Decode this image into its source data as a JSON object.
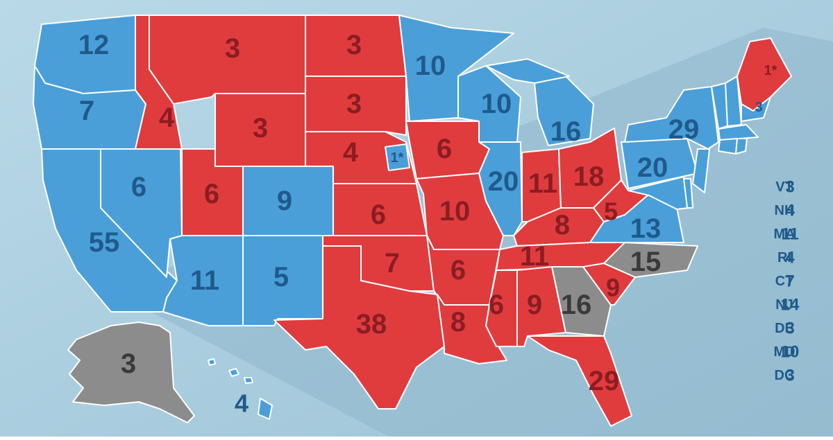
{
  "states": [
    {
      "votes": 12,
      "color": "#4a9fd9",
      "text_color": "#1f5a8a"
    },
    {
      "votes": 7,
      "color": "#4a9fd9",
      "text_color": "#1f5a8a"
    },
    {
      "votes": 55,
      "color": "#4a9fd9",
      "text_color": "#1f5a8a"
    },
    {
      "votes": 6,
      "color": "#4a9fd9",
      "text_color": "#1f5a8a"
    },
    {
      "votes": 4,
      "color": "#e03c3e",
      "text_color": "#8b1c22"
    },
    {
      "votes": 3,
      "color": "#e03c3e",
      "text_color": "#8b1c22"
    },
    {
      "votes": 3,
      "color": "#e03c3e",
      "text_color": "#8b1c22"
    },
    {
      "votes": 6,
      "color": "#e03c3e",
      "text_color": "#8b1c22"
    },
    {
      "votes": 9,
      "color": "#4a9fd9",
      "text_color": "#1f5a8a"
    },
    {
      "votes": 11,
      "color": "#4a9fd9",
      "text_color": "#1f5a8a"
    },
    {
      "votes": 5,
      "color": "#4a9fd9",
      "text_color": "#1f5a8a"
    },
    {
      "votes": 3,
      "color": "#e03c3e",
      "text_color": "#8b1c22"
    },
    {
      "votes": 3,
      "color": "#e03c3e",
      "text_color": "#8b1c22"
    },
    {
      "votes": 4,
      "color": "#e03c3e",
      "text_color": "#8b1c22"
    },
    {
      "votes": "1*",
      "color": "#4a9fd9",
      "text_color": "#1f5a8a"
    },
    {
      "votes": 6,
      "color": "#e03c3e",
      "text_color": "#8b1c22"
    },
    {
      "votes": 7,
      "color": "#e03c3e",
      "text_color": "#8b1c22"
    },
    {
      "votes": 38,
      "color": "#e03c3e",
      "text_color": "#8b1c22"
    },
    {
      "votes": 10,
      "color": "#4a9fd9",
      "text_color": "#1f5a8a"
    },
    {
      "votes": 6,
      "color": "#e03c3e",
      "text_color": "#8b1c22"
    },
    {
      "votes": 10,
      "color": "#e03c3e",
      "text_color": "#8b1c22"
    },
    {
      "votes": 6,
      "color": "#e03c3e",
      "text_color": "#8b1c22"
    },
    {
      "votes": 8,
      "color": "#e03c3e",
      "text_color": "#8b1c22"
    },
    {
      "votes": 10,
      "color": "#4a9fd9",
      "text_color": "#1f5a8a"
    },
    {
      "votes": 20,
      "color": "#4a9fd9",
      "text_color": "#1f5a8a"
    },
    {
      "votes": 16,
      "color": "#4a9fd9",
      "text_color": "#1f5a8a"
    },
    {
      "votes": 11,
      "color": "#e03c3e",
      "text_color": "#8b1c22"
    },
    {
      "votes": 18,
      "color": "#e03c3e",
      "text_color": "#8b1c22"
    },
    {
      "votes": 8,
      "color": "#e03c3e",
      "text_color": "#8b1c22"
    },
    {
      "votes": 11,
      "color": "#e03c3e",
      "text_color": "#8b1c22"
    },
    {
      "votes": 6,
      "color": "#e03c3e",
      "text_color": "#8b1c22"
    },
    {
      "votes": 9,
      "color": "#e03c3e",
      "text_color": "#8b1c22"
    },
    {
      "votes": 16,
      "color": "#8c8c8c",
      "text_color": "#3a3a3a"
    },
    {
      "votes": 29,
      "color": "#e03c3e",
      "text_color": "#8b1c22"
    },
    {
      "votes": 9,
      "color": "#e03c3e",
      "text_color": "#8b1c22"
    },
    {
      "votes": 15,
      "color": "#8c8c8c",
      "text_color": "#3a3a3a"
    },
    {
      "votes": 13,
      "color": "#4a9fd9",
      "text_color": "#1f5a8a"
    },
    {
      "votes": 5,
      "color": "#e03c3e",
      "text_color": "#8b1c22"
    },
    {
      "votes": 20,
      "color": "#4a9fd9",
      "text_color": "#1f5a8a"
    },
    {
      "votes": 29,
      "color": "#4a9fd9",
      "text_color": "#1f5a8a"
    },
    {
      "votes": "1*",
      "color": "#e03c3e",
      "text_color": "#8b1c22"
    },
    {
      "votes": 3,
      "color": "#4a9fd9",
      "text_color": "#1f5a8a"
    },
    {
      "votes": 3,
      "color": "#8c8c8c",
      "text_color": "#3a3a3a"
    },
    {
      "votes": 4,
      "color": "#4a9fd9",
      "text_color": "#1f5a8a"
    }
  ],
  "small_states": [
    {
      "abbr": "VT",
      "votes": 3
    },
    {
      "abbr": "NH",
      "votes": 4
    },
    {
      "abbr": "MA",
      "votes": 11
    },
    {
      "abbr": "RI",
      "votes": 4
    },
    {
      "abbr": "CT",
      "votes": 7
    },
    {
      "abbr": "NJ",
      "votes": 14
    },
    {
      "abbr": "DE",
      "votes": 3
    },
    {
      "abbr": "MD",
      "votes": 10
    },
    {
      "abbr": "DC",
      "votes": 3
    }
  ],
  "small_states_color": "#1f5a8a"
}
